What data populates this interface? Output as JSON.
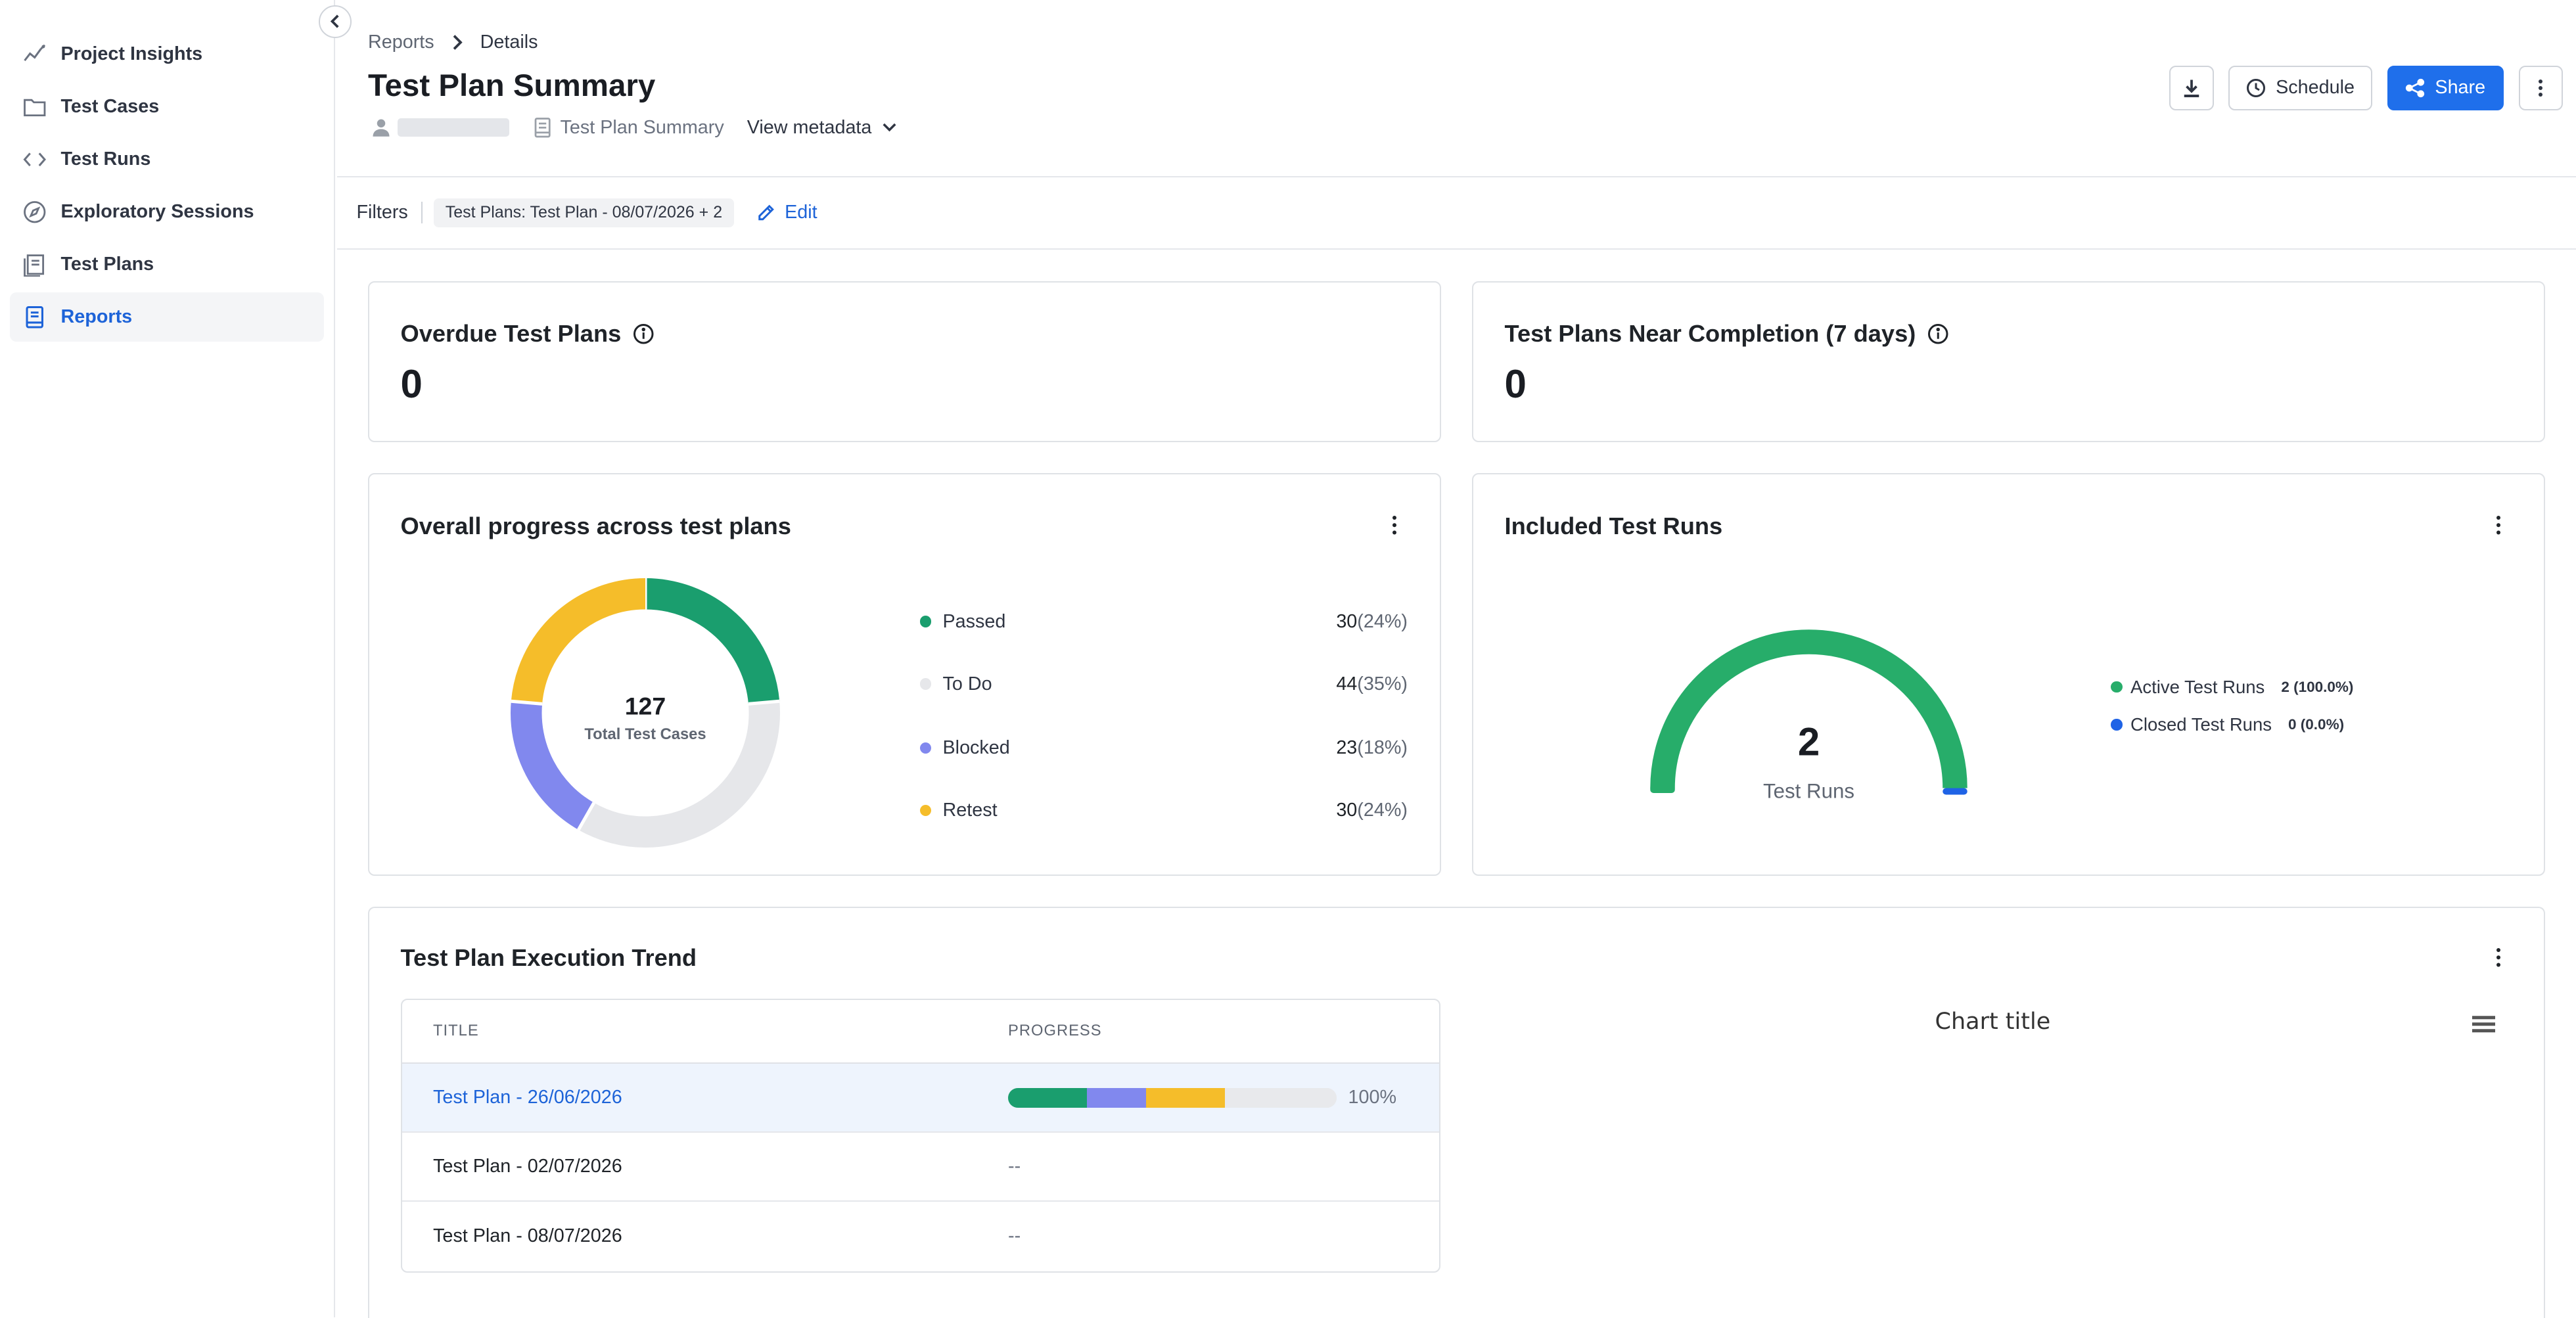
{
  "sidebar": {
    "items": [
      {
        "label": "Project Insights",
        "icon": "chart-line-icon"
      },
      {
        "label": "Test Cases",
        "icon": "folder-icon"
      },
      {
        "label": "Test Runs",
        "icon": "code-icon"
      },
      {
        "label": "Exploratory Sessions",
        "icon": "compass-icon"
      },
      {
        "label": "Test Plans",
        "icon": "plans-icon"
      },
      {
        "label": "Reports",
        "icon": "report-icon",
        "active": true
      }
    ]
  },
  "breadcrumb": {
    "parent": "Reports",
    "current": "Details"
  },
  "page": {
    "title": "Test Plan Summary",
    "report_type": "Test Plan Summary",
    "view_metadata": "View metadata"
  },
  "actions": {
    "schedule": "Schedule",
    "share": "Share"
  },
  "filters": {
    "label": "Filters",
    "chip": "Test Plans: Test Plan - 08/07/2026 + 2",
    "edit": "Edit"
  },
  "overdue": {
    "title": "Overdue Test Plans",
    "value": "0"
  },
  "near_completion": {
    "title": "Test Plans Near Completion (7 days)",
    "value": "0"
  },
  "progress_card": {
    "title": "Overall progress across test plans",
    "total": "127",
    "total_label": "Total Test Cases",
    "legend": [
      {
        "label": "Passed",
        "count": "30",
        "pct": "(24%)",
        "color": "#1a9e6e"
      },
      {
        "label": "To Do",
        "count": "44",
        "pct": "(35%)",
        "color": "#e6e7ea"
      },
      {
        "label": "Blocked",
        "count": "23",
        "pct": "(18%)",
        "color": "#8188ee"
      },
      {
        "label": "Retest",
        "count": "30",
        "pct": "(24%)",
        "color": "#f5bd2a"
      }
    ]
  },
  "runs_card": {
    "title": "Included Test Runs",
    "value": "2",
    "value_label": "Test Runs",
    "legend": [
      {
        "label": "Active Test Runs",
        "value": "2 (100.0%)",
        "color": "#27ad6a"
      },
      {
        "label": "Closed Test Runs",
        "value": "0 (0.0%)",
        "color": "#1f63e6"
      }
    ]
  },
  "trend_card": {
    "title": "Test Plan Execution Trend",
    "columns": [
      "TITLE",
      "PROGRESS"
    ],
    "rows": [
      {
        "title": "Test Plan - 26/06/2026",
        "progress": "100%",
        "selected": true,
        "segments": [
          {
            "color": "#1a9e6e",
            "value": 0.24
          },
          {
            "color": "#8188ee",
            "value": 0.18
          },
          {
            "color": "#f5bd2a",
            "value": 0.24
          },
          {
            "color": "#e8e9ec",
            "value": 0.34
          }
        ]
      },
      {
        "title": "Test Plan - 02/07/2026",
        "progress": "--"
      },
      {
        "title": "Test Plan - 08/07/2026",
        "progress": "--"
      }
    ],
    "chart_title": "Chart title"
  },
  "chart_data": [
    {
      "type": "pie",
      "title": "Overall progress across test plans",
      "categories": [
        "Passed",
        "To Do",
        "Blocked",
        "Retest"
      ],
      "values": [
        30,
        44,
        23,
        30
      ],
      "colors": [
        "#1a9e6e",
        "#e6e7ea",
        "#8188ee",
        "#f5bd2a"
      ]
    },
    {
      "type": "pie",
      "title": "Included Test Runs",
      "categories": [
        "Active Test Runs",
        "Closed Test Runs"
      ],
      "values": [
        2,
        0
      ],
      "colors": [
        "#27ad6a",
        "#1f63e6"
      ]
    }
  ]
}
